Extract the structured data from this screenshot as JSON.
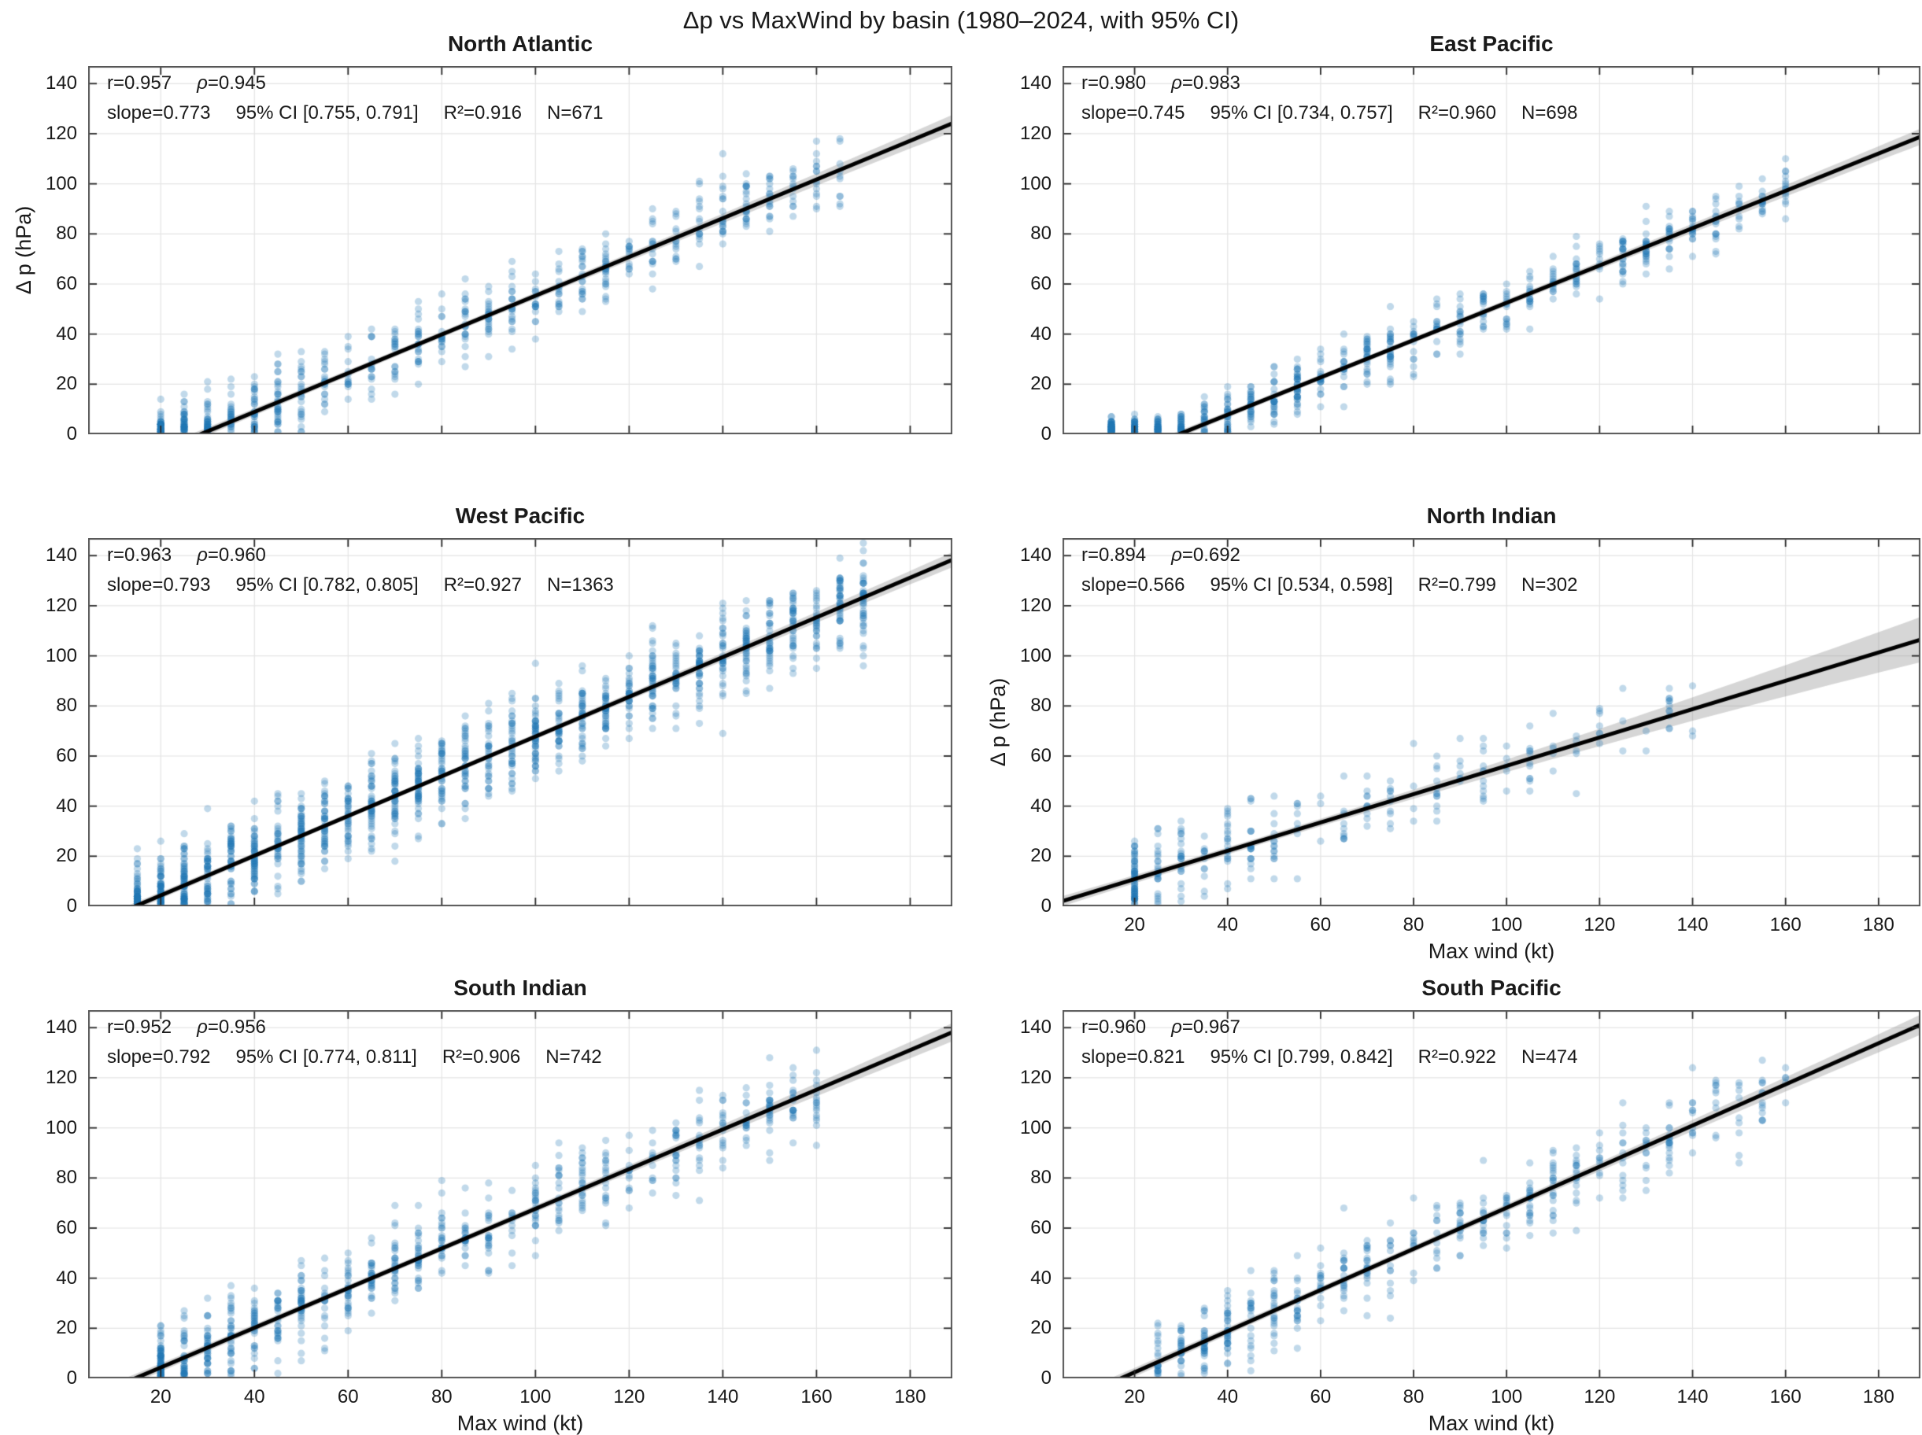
{
  "figure": {
    "suptitle": "Δp vs MaxWind by basin (1980–2024, with 95% CI)",
    "xlabel": "Max wind (kt)",
    "ylabel": "Δ p  (hPa)",
    "colors": {
      "scatter": "#1f77b4",
      "scatter_alpha": 0.28,
      "fit_line": "#000000",
      "ci_band": "rgba(120,120,120,0.30)",
      "grid": "#e4e4e4",
      "spine": "#555555",
      "tick": "#262626",
      "text": "#1a1a1a"
    },
    "axes": {
      "xlim": [
        4.5,
        189
      ],
      "ylim": [
        0,
        147
      ],
      "xticks": [
        20,
        40,
        60,
        80,
        100,
        120,
        140,
        160,
        180
      ],
      "yticks": [
        0,
        20,
        40,
        60,
        80,
        100,
        120,
        140
      ],
      "grid": true,
      "tick_direction": "in"
    }
  },
  "chart_data": [
    {
      "type": "scatter",
      "title": "North Atlantic",
      "stats": {
        "r": "r=0.957",
        "rho": "ρ=0.945",
        "slope": "slope=0.773",
        "ci": "95% CI [0.755, 0.791]",
        "r2": "R²=0.916",
        "n": "N=671"
      },
      "regression": {
        "r": 0.957,
        "rho": 0.945,
        "slope": 0.773,
        "ci95": [
          0.755,
          0.791
        ],
        "r2": 0.916,
        "n": 671,
        "intercept": -22.0
      },
      "ci_band": {
        "center_x": 75,
        "half_width_center": 1.2,
        "half_width_edge": 3.4
      },
      "scatter_gen": {
        "seed": 11,
        "n": 671,
        "x_min": 18,
        "x_max": 166,
        "x_skew": 1.45,
        "y_sd": 7.5,
        "x_step": 5
      },
      "show_xticklabels": false,
      "show_xlabel": false,
      "show_ylabel": true
    },
    {
      "type": "scatter",
      "title": "East Pacific",
      "stats": {
        "r": "r=0.980",
        "rho": "ρ=0.983",
        "slope": "slope=0.745",
        "ci": "95% CI [0.734, 0.757]",
        "r2": "R²=0.960",
        "n": "N=698"
      },
      "regression": {
        "r": 0.98,
        "rho": 0.983,
        "slope": 0.745,
        "ci95": [
          0.734,
          0.757
        ],
        "r2": 0.96,
        "n": 698,
        "intercept": -22.0
      },
      "ci_band": {
        "center_x": 70,
        "half_width_center": 1.1,
        "half_width_edge": 3.2
      },
      "scatter_gen": {
        "seed": 22,
        "n": 698,
        "x_min": 14,
        "x_max": 162,
        "x_skew": 1.5,
        "y_sd": 5.5,
        "x_step": 5
      },
      "show_xticklabels": false,
      "show_xlabel": false,
      "show_ylabel": false
    },
    {
      "type": "scatter",
      "title": "West Pacific",
      "stats": {
        "r": "r=0.963",
        "rho": "ρ=0.960",
        "slope": "slope=0.793",
        "ci": "95% CI [0.782, 0.805]",
        "r2": "R²=0.927",
        "n": "N=1363"
      },
      "regression": {
        "r": 0.963,
        "rho": 0.96,
        "slope": 0.793,
        "ci95": [
          0.782,
          0.805
        ],
        "r2": 0.927,
        "n": 1363,
        "intercept": -11.5
      },
      "ci_band": {
        "center_x": 70,
        "half_width_center": 1.0,
        "half_width_edge": 3.0
      },
      "scatter_gen": {
        "seed": 33,
        "n": 1363,
        "x_min": 14,
        "x_max": 172,
        "x_skew": 1.25,
        "y_sd": 9.0,
        "x_step": 5
      },
      "show_xticklabels": false,
      "show_xlabel": false,
      "show_ylabel": false
    },
    {
      "type": "scatter",
      "title": "North Indian",
      "stats": {
        "r": "r=0.894",
        "rho": "ρ=0.692",
        "slope": "slope=0.566",
        "ci": "95% CI [0.534, 0.598]",
        "r2": "R²=0.799",
        "n": "N=302"
      },
      "regression": {
        "r": 0.894,
        "rho": 0.692,
        "slope": 0.566,
        "ci95": [
          0.534,
          0.598
        ],
        "r2": 0.799,
        "n": 302,
        "intercept": -0.5
      },
      "ci_band": {
        "center_x": 45,
        "half_width_center": 1.4,
        "half_width_edge": 9.0
      },
      "scatter_gen": {
        "seed": 44,
        "n": 302,
        "x_min": 18,
        "x_max": 142,
        "x_skew": 2.1,
        "y_sd": 8.0,
        "x_step": 5
      },
      "show_xticklabels": true,
      "show_xlabel": true,
      "show_ylabel": true
    },
    {
      "type": "scatter",
      "title": "South Indian",
      "stats": {
        "r": "r=0.952",
        "rho": "ρ=0.956",
        "slope": "slope=0.792",
        "ci": "95% CI [0.774, 0.811]",
        "r2": "R²=0.906",
        "n": "N=742"
      },
      "regression": {
        "r": 0.952,
        "rho": 0.956,
        "slope": 0.792,
        "ci95": [
          0.774,
          0.811
        ],
        "r2": 0.906,
        "n": 742,
        "intercept": -11.5
      },
      "ci_band": {
        "center_x": 70,
        "half_width_center": 1.2,
        "half_width_edge": 3.6
      },
      "scatter_gen": {
        "seed": 55,
        "n": 742,
        "x_min": 18,
        "x_max": 162,
        "x_skew": 1.45,
        "y_sd": 8.5,
        "x_step": 5
      },
      "show_xticklabels": true,
      "show_xlabel": true,
      "show_ylabel": false
    },
    {
      "type": "scatter",
      "title": "South Pacific",
      "stats": {
        "r": "r=0.960",
        "rho": "ρ=0.967",
        "slope": "slope=0.821",
        "ci": "95% CI [0.799, 0.842]",
        "r2": "R²=0.922",
        "n": "N=474"
      },
      "regression": {
        "r": 0.96,
        "rho": 0.967,
        "slope": 0.821,
        "ci95": [
          0.799,
          0.842
        ],
        "r2": 0.922,
        "n": 474,
        "intercept": -14.0
      },
      "ci_band": {
        "center_x": 70,
        "half_width_center": 1.3,
        "half_width_edge": 4.0
      },
      "scatter_gen": {
        "seed": 66,
        "n": 474,
        "x_min": 25,
        "x_max": 160,
        "x_skew": 1.35,
        "y_sd": 8.0,
        "x_step": 5
      },
      "show_xticklabels": true,
      "show_xlabel": true,
      "show_ylabel": false
    }
  ]
}
